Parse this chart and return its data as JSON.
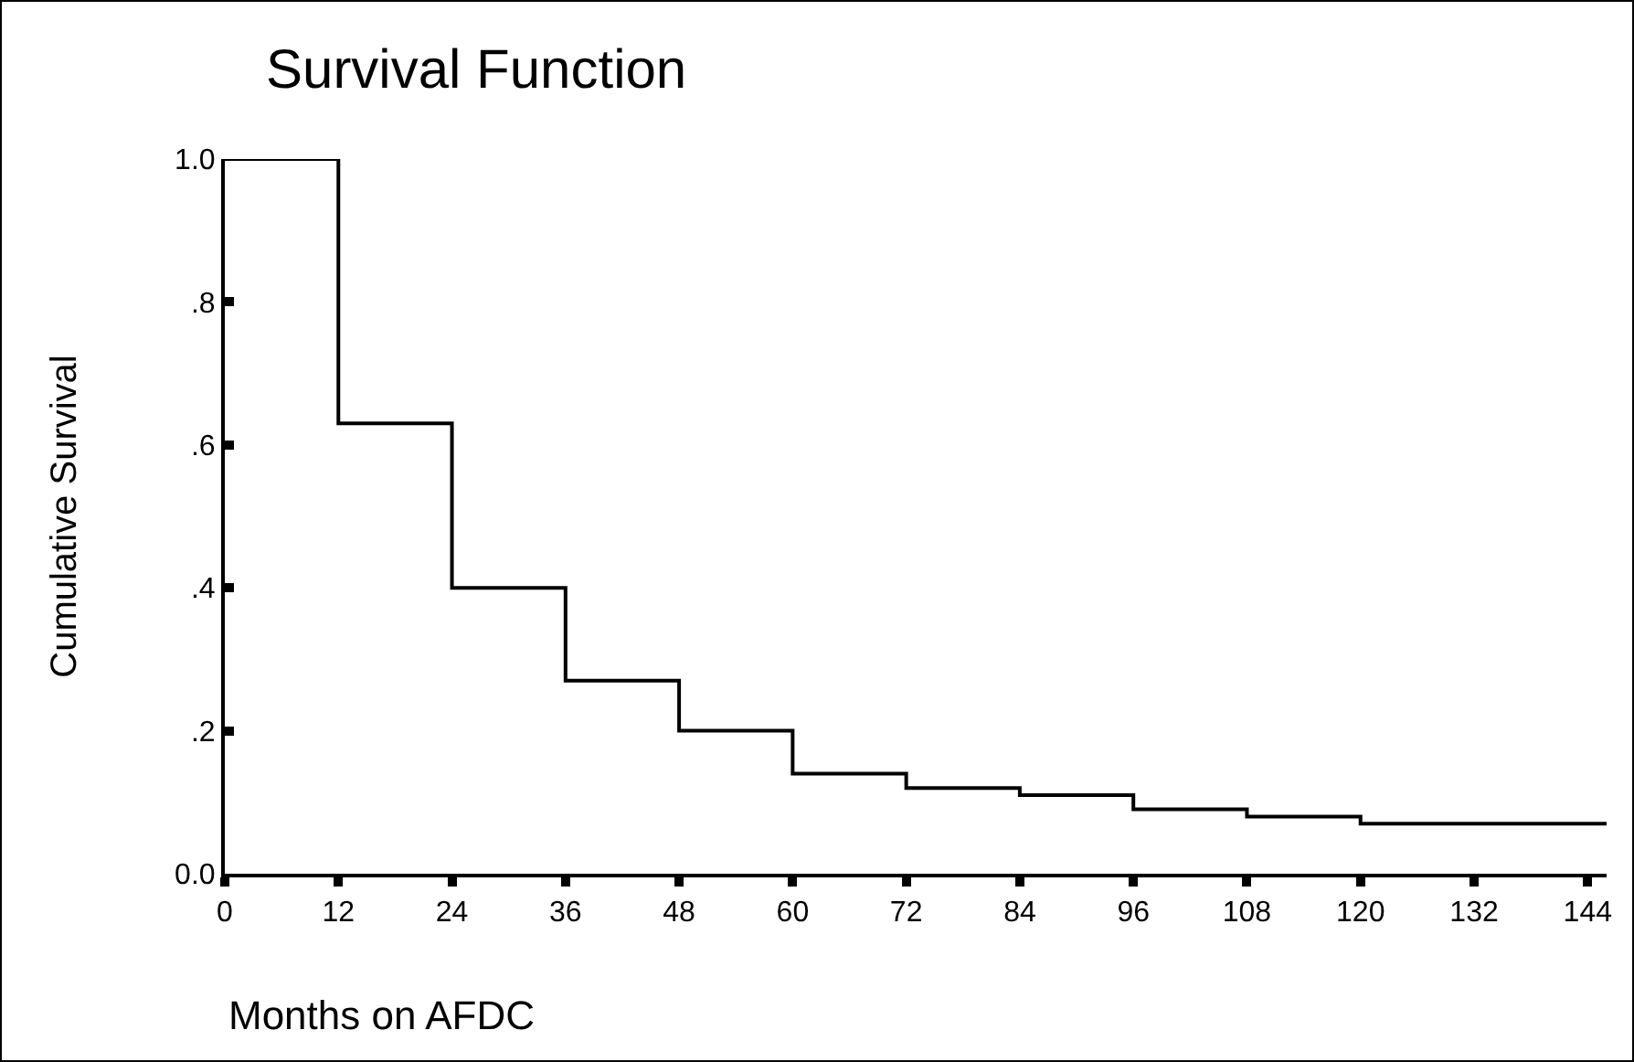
{
  "chart_data": {
    "type": "step",
    "title": "Survival Function",
    "xlabel": "Months on AFDC",
    "ylabel": "Cumulative Survival",
    "x": [
      0,
      12,
      24,
      36,
      48,
      60,
      72,
      84,
      96,
      108,
      120,
      132,
      144,
      146
    ],
    "series": [
      {
        "color": "#000000",
        "values": [
          1.0,
          0.63,
          0.4,
          0.27,
          0.2,
          0.14,
          0.12,
          0.11,
          0.09,
          0.08,
          0.07,
          0.07,
          0.07,
          0.07
        ]
      }
    ],
    "xlim": [
      0,
      146
    ],
    "ylim": [
      0,
      1
    ],
    "xticks": [
      0,
      12,
      24,
      36,
      48,
      60,
      72,
      84,
      96,
      108,
      120,
      132,
      144
    ],
    "yticks": [
      {
        "value": 0,
        "label": "0.0"
      },
      {
        "value": 0.2,
        "label": ".2"
      },
      {
        "value": 0.4,
        "label": ".4"
      },
      {
        "value": 0.6,
        "label": ".6"
      },
      {
        "value": 0.8,
        "label": ".8"
      },
      {
        "value": 1,
        "label": "1.0"
      }
    ],
    "grid": false,
    "line_style": "solid",
    "marker": "none"
  }
}
